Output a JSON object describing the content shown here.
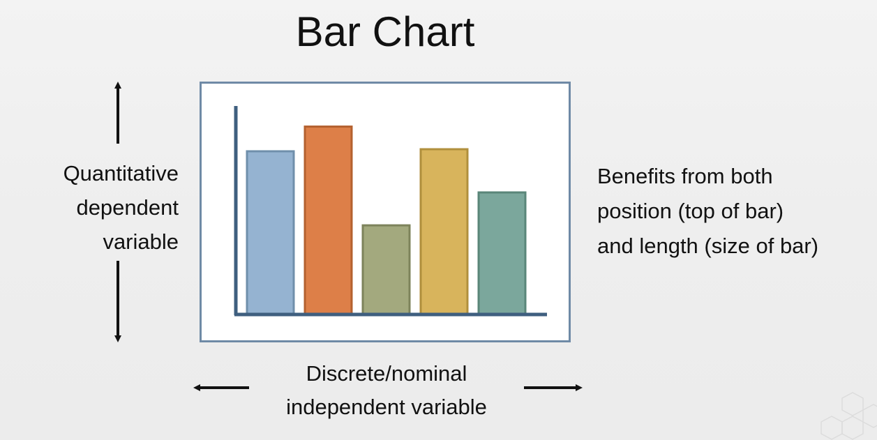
{
  "slide": {
    "title": "Bar Chart",
    "y_label_lines": [
      "Quantitative",
      "dependent",
      "variable"
    ],
    "x_label_lines": [
      "Discrete/nominal",
      "independent variable"
    ],
    "note_lines": [
      "Benefits from both",
      "position (top of bar)",
      "and length (size of bar)"
    ]
  },
  "chart_data": {
    "type": "bar",
    "categories": [
      "",
      "",
      "",
      "",
      ""
    ],
    "values": [
      79,
      91,
      43,
      80,
      59
    ],
    "ylim": [
      0,
      100
    ],
    "title": "",
    "xlabel": "",
    "ylabel": "",
    "grid": false,
    "legend": "none",
    "colors": [
      "#95b3d1",
      "#dd7f48",
      "#a3a97e",
      "#d8b45c",
      "#7ba79c"
    ],
    "stroke_colors": [
      "#6f8fab",
      "#b4612f",
      "#7d835b",
      "#b08f3c",
      "#5a8679"
    ],
    "axis_color": "#3f5f7f"
  },
  "colors": {
    "frame_border": "#6f8aa6",
    "arrow": "#111111"
  }
}
